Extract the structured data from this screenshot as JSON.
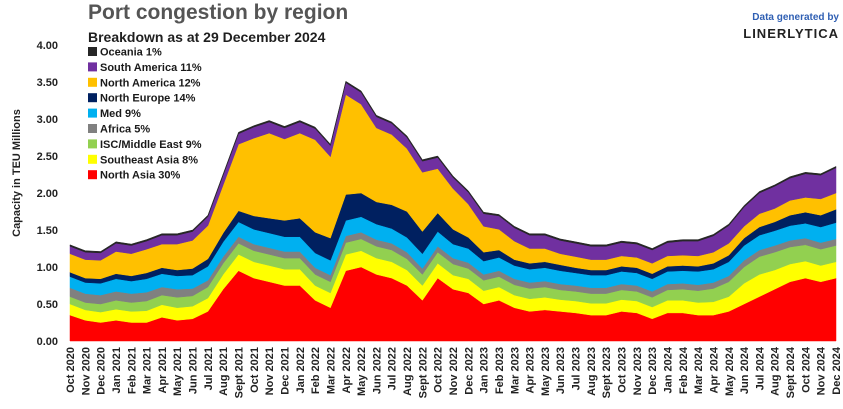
{
  "header": {
    "title": "Port congestion by region",
    "subtitle": "Breakdown as at 29 December 2024"
  },
  "credit": {
    "generated": "Data generated by",
    "brand": "LINERLYTICA"
  },
  "chart_data": {
    "type": "area",
    "stacked": true,
    "ylabel": "Capacity in TEU Millions",
    "ylim": [
      0,
      4.0
    ],
    "yticks": [
      "0.00",
      "0.50",
      "1.00",
      "1.50",
      "2.00",
      "2.50",
      "3.00",
      "3.50",
      "4.00"
    ],
    "categories": [
      "Oct 2020",
      "Nov 2020",
      "Dec 2020",
      "Jan 2021",
      "Feb 2021",
      "Mar 2021",
      "Apr 2021",
      "May 2021",
      "Jun 2021",
      "Jul 2021",
      "Aug 2021",
      "Sept 2021",
      "Oct 2021",
      "Nov 2021",
      "Dec 2021",
      "Jan 2022",
      "Feb 2022",
      "Mar 2022",
      "Apr 2022",
      "May 2022",
      "Jun 2022",
      "Jul 2022",
      "Aug 2022",
      "Sept 2022",
      "Oct 2022",
      "Nov 2022",
      "Dec 2022",
      "Jan 2023",
      "Feb 2023",
      "Mar 2023",
      "Apr 2023",
      "May 2023",
      "Jun 2023",
      "Jul 2023",
      "Aug 2023",
      "Sept 2023",
      "Oct 2023",
      "Nov 2023",
      "Dec 2023",
      "Jan 2024",
      "Feb 2024",
      "Mar 2024",
      "Apr 2024",
      "May 2024",
      "Jun 2024",
      "Jul 2024",
      "Aug 2024",
      "Sept 2024",
      "Oct 2024",
      "Nov 2024",
      "Dec 2024"
    ],
    "legend_position": "top-left",
    "series": [
      {
        "name": "North Asia 30%",
        "color": "#ff0000",
        "values": [
          0.35,
          0.28,
          0.25,
          0.28,
          0.25,
          0.25,
          0.32,
          0.28,
          0.3,
          0.4,
          0.7,
          0.95,
          0.85,
          0.8,
          0.75,
          0.75,
          0.55,
          0.45,
          0.95,
          1.0,
          0.9,
          0.85,
          0.75,
          0.55,
          0.85,
          0.7,
          0.65,
          0.5,
          0.55,
          0.45,
          0.4,
          0.42,
          0.4,
          0.38,
          0.35,
          0.35,
          0.4,
          0.38,
          0.3,
          0.38,
          0.38,
          0.35,
          0.35,
          0.4,
          0.5,
          0.6,
          0.7,
          0.8,
          0.85,
          0.8,
          0.85
        ]
      },
      {
        "name": "Southeast Asia 8%",
        "color": "#ffff00",
        "values": [
          0.15,
          0.14,
          0.14,
          0.15,
          0.15,
          0.16,
          0.17,
          0.17,
          0.17,
          0.18,
          0.2,
          0.22,
          0.22,
          0.22,
          0.22,
          0.22,
          0.2,
          0.2,
          0.22,
          0.22,
          0.22,
          0.22,
          0.21,
          0.2,
          0.2,
          0.19,
          0.19,
          0.18,
          0.18,
          0.17,
          0.17,
          0.17,
          0.16,
          0.16,
          0.16,
          0.16,
          0.16,
          0.16,
          0.16,
          0.17,
          0.17,
          0.17,
          0.18,
          0.2,
          0.28,
          0.3,
          0.26,
          0.24,
          0.23,
          0.22,
          0.22
        ]
      },
      {
        "name": "ISC/Middle East 9%",
        "color": "#92d050",
        "values": [
          0.1,
          0.1,
          0.11,
          0.12,
          0.12,
          0.13,
          0.13,
          0.14,
          0.14,
          0.15,
          0.15,
          0.15,
          0.15,
          0.15,
          0.15,
          0.15,
          0.15,
          0.15,
          0.16,
          0.16,
          0.16,
          0.16,
          0.15,
          0.15,
          0.15,
          0.15,
          0.14,
          0.14,
          0.14,
          0.14,
          0.14,
          0.14,
          0.13,
          0.13,
          0.13,
          0.13,
          0.13,
          0.13,
          0.13,
          0.14,
          0.15,
          0.16,
          0.18,
          0.2,
          0.22,
          0.24,
          0.24,
          0.23,
          0.22,
          0.22,
          0.22
        ]
      },
      {
        "name": "Africa 5%",
        "color": "#808080",
        "values": [
          0.12,
          0.12,
          0.12,
          0.12,
          0.12,
          0.12,
          0.11,
          0.11,
          0.1,
          0.09,
          0.09,
          0.09,
          0.09,
          0.09,
          0.09,
          0.09,
          0.09,
          0.09,
          0.09,
          0.09,
          0.09,
          0.09,
          0.09,
          0.08,
          0.08,
          0.08,
          0.08,
          0.08,
          0.08,
          0.08,
          0.08,
          0.08,
          0.08,
          0.08,
          0.08,
          0.08,
          0.08,
          0.08,
          0.08,
          0.08,
          0.08,
          0.08,
          0.08,
          0.08,
          0.09,
          0.09,
          0.09,
          0.09,
          0.09,
          0.09,
          0.09
        ]
      },
      {
        "name": "Med 9%",
        "color": "#00b0f0",
        "values": [
          0.15,
          0.15,
          0.16,
          0.17,
          0.17,
          0.18,
          0.18,
          0.18,
          0.18,
          0.19,
          0.2,
          0.2,
          0.2,
          0.2,
          0.2,
          0.2,
          0.2,
          0.2,
          0.21,
          0.21,
          0.21,
          0.2,
          0.2,
          0.2,
          0.2,
          0.19,
          0.19,
          0.18,
          0.18,
          0.18,
          0.18,
          0.18,
          0.18,
          0.17,
          0.17,
          0.17,
          0.17,
          0.17,
          0.17,
          0.17,
          0.17,
          0.18,
          0.18,
          0.19,
          0.2,
          0.2,
          0.2,
          0.2,
          0.2,
          0.21,
          0.22
        ]
      },
      {
        "name": "North Europe 14%",
        "color": "#002060",
        "values": [
          0.06,
          0.06,
          0.06,
          0.07,
          0.07,
          0.08,
          0.08,
          0.08,
          0.09,
          0.1,
          0.12,
          0.15,
          0.18,
          0.2,
          0.22,
          0.25,
          0.28,
          0.3,
          0.35,
          0.32,
          0.3,
          0.32,
          0.35,
          0.3,
          0.25,
          0.2,
          0.15,
          0.12,
          0.1,
          0.08,
          0.08,
          0.08,
          0.08,
          0.07,
          0.07,
          0.07,
          0.07,
          0.07,
          0.07,
          0.07,
          0.07,
          0.07,
          0.08,
          0.09,
          0.1,
          0.11,
          0.12,
          0.14,
          0.15,
          0.16,
          0.18
        ]
      },
      {
        "name": "North America 12%",
        "color": "#ffc000",
        "values": [
          0.25,
          0.25,
          0.25,
          0.3,
          0.3,
          0.32,
          0.32,
          0.35,
          0.38,
          0.45,
          0.65,
          0.9,
          1.05,
          1.15,
          1.1,
          1.15,
          1.25,
          1.1,
          1.35,
          1.2,
          1.0,
          0.95,
          0.85,
          0.8,
          0.6,
          0.55,
          0.45,
          0.35,
          0.28,
          0.25,
          0.2,
          0.18,
          0.15,
          0.15,
          0.14,
          0.14,
          0.14,
          0.14,
          0.14,
          0.14,
          0.14,
          0.14,
          0.15,
          0.16,
          0.16,
          0.18,
          0.18,
          0.2,
          0.2,
          0.22,
          0.22
        ]
      },
      {
        "name": "South America 11%",
        "color": "#7030a0",
        "values": [
          0.1,
          0.1,
          0.1,
          0.11,
          0.11,
          0.11,
          0.12,
          0.12,
          0.12,
          0.12,
          0.13,
          0.14,
          0.15,
          0.15,
          0.15,
          0.15,
          0.15,
          0.15,
          0.16,
          0.16,
          0.15,
          0.15,
          0.15,
          0.15,
          0.15,
          0.15,
          0.16,
          0.17,
          0.18,
          0.18,
          0.18,
          0.18,
          0.18,
          0.18,
          0.18,
          0.18,
          0.18,
          0.18,
          0.18,
          0.18,
          0.19,
          0.2,
          0.22,
          0.24,
          0.26,
          0.28,
          0.3,
          0.3,
          0.32,
          0.32,
          0.34
        ]
      },
      {
        "name": "Oceania 1%",
        "color": "#262626",
        "values": [
          0.02,
          0.02,
          0.02,
          0.02,
          0.02,
          0.02,
          0.02,
          0.02,
          0.02,
          0.02,
          0.02,
          0.02,
          0.02,
          0.02,
          0.02,
          0.02,
          0.02,
          0.02,
          0.02,
          0.02,
          0.02,
          0.02,
          0.02,
          0.02,
          0.02,
          0.02,
          0.02,
          0.02,
          0.02,
          0.02,
          0.02,
          0.02,
          0.02,
          0.02,
          0.02,
          0.02,
          0.02,
          0.02,
          0.02,
          0.02,
          0.02,
          0.02,
          0.02,
          0.02,
          0.02,
          0.02,
          0.02,
          0.02,
          0.02,
          0.02,
          0.02
        ]
      }
    ]
  }
}
